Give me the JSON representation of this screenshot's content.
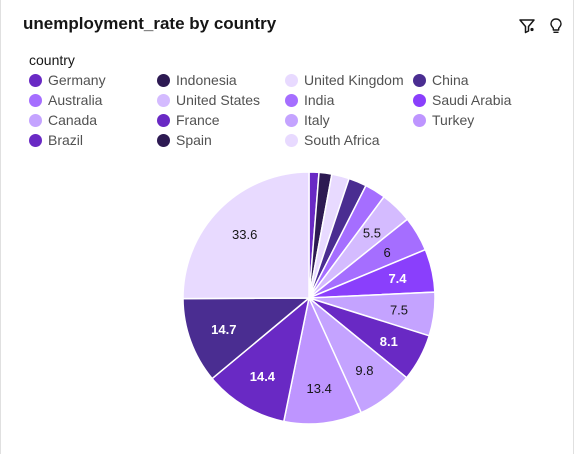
{
  "header": {
    "title": "unemployment_rate by country",
    "filter_icon": "filter-icon",
    "insight_icon": "lightbulb-icon"
  },
  "legend": {
    "title": "country",
    "placement": "top-left",
    "columns": 4
  },
  "chart_data": {
    "type": "pie",
    "title": "unemployment_rate by country",
    "legend_title": "country",
    "legend_entries": [
      {
        "name": "Germany",
        "color": "#6929c4"
      },
      {
        "name": "Indonesia",
        "color": "#2d1a52"
      },
      {
        "name": "United Kingdom",
        "color": "#e8daff"
      },
      {
        "name": "China",
        "color": "#4a2d91"
      },
      {
        "name": "Australia",
        "color": "#a56eff"
      },
      {
        "name": "United States",
        "color": "#d4bbff"
      },
      {
        "name": "India",
        "color": "#a56eff"
      },
      {
        "name": "Saudi Arabia",
        "color": "#8a3ffc"
      },
      {
        "name": "Canada",
        "color": "#c4a3ff"
      },
      {
        "name": "France",
        "color": "#6929c4"
      },
      {
        "name": "Italy",
        "color": "#c4a3ff"
      },
      {
        "name": "Turkey",
        "color": "#be95ff"
      },
      {
        "name": "Brazil",
        "color": "#6929c4"
      },
      {
        "name": "Spain",
        "color": "#2d1a52"
      },
      {
        "name": "South Africa",
        "color": "#e8daff"
      }
    ],
    "slices": [
      {
        "value": 1.7,
        "color": "#6929c4",
        "label": ""
      },
      {
        "value": 2.2,
        "color": "#2d1a52",
        "label": ""
      },
      {
        "value": 3.0,
        "color": "#e8daff",
        "label": ""
      },
      {
        "value": 3.1,
        "color": "#4a2d91",
        "label": ""
      },
      {
        "value": 3.6,
        "color": "#a56eff",
        "label": ""
      },
      {
        "value": 5.5,
        "color": "#d4bbff",
        "label": "5.5"
      },
      {
        "value": 6.0,
        "color": "#a56eff",
        "label": "6"
      },
      {
        "value": 7.4,
        "color": "#8a3ffc",
        "label": "7.4"
      },
      {
        "value": 7.5,
        "color": "#c4a3ff",
        "label": "7.5"
      },
      {
        "value": 8.1,
        "color": "#6929c4",
        "label": "8.1"
      },
      {
        "value": 9.8,
        "color": "#c4a3ff",
        "label": "9.8"
      },
      {
        "value": 13.4,
        "color": "#be95ff",
        "label": "13.4"
      },
      {
        "value": 14.4,
        "color": "#6929c4",
        "label": "14.4"
      },
      {
        "value": 14.7,
        "color": "#4a2d91",
        "label": "14.7"
      },
      {
        "value": 33.6,
        "color": "#e8daff",
        "label": "33.6"
      }
    ]
  }
}
